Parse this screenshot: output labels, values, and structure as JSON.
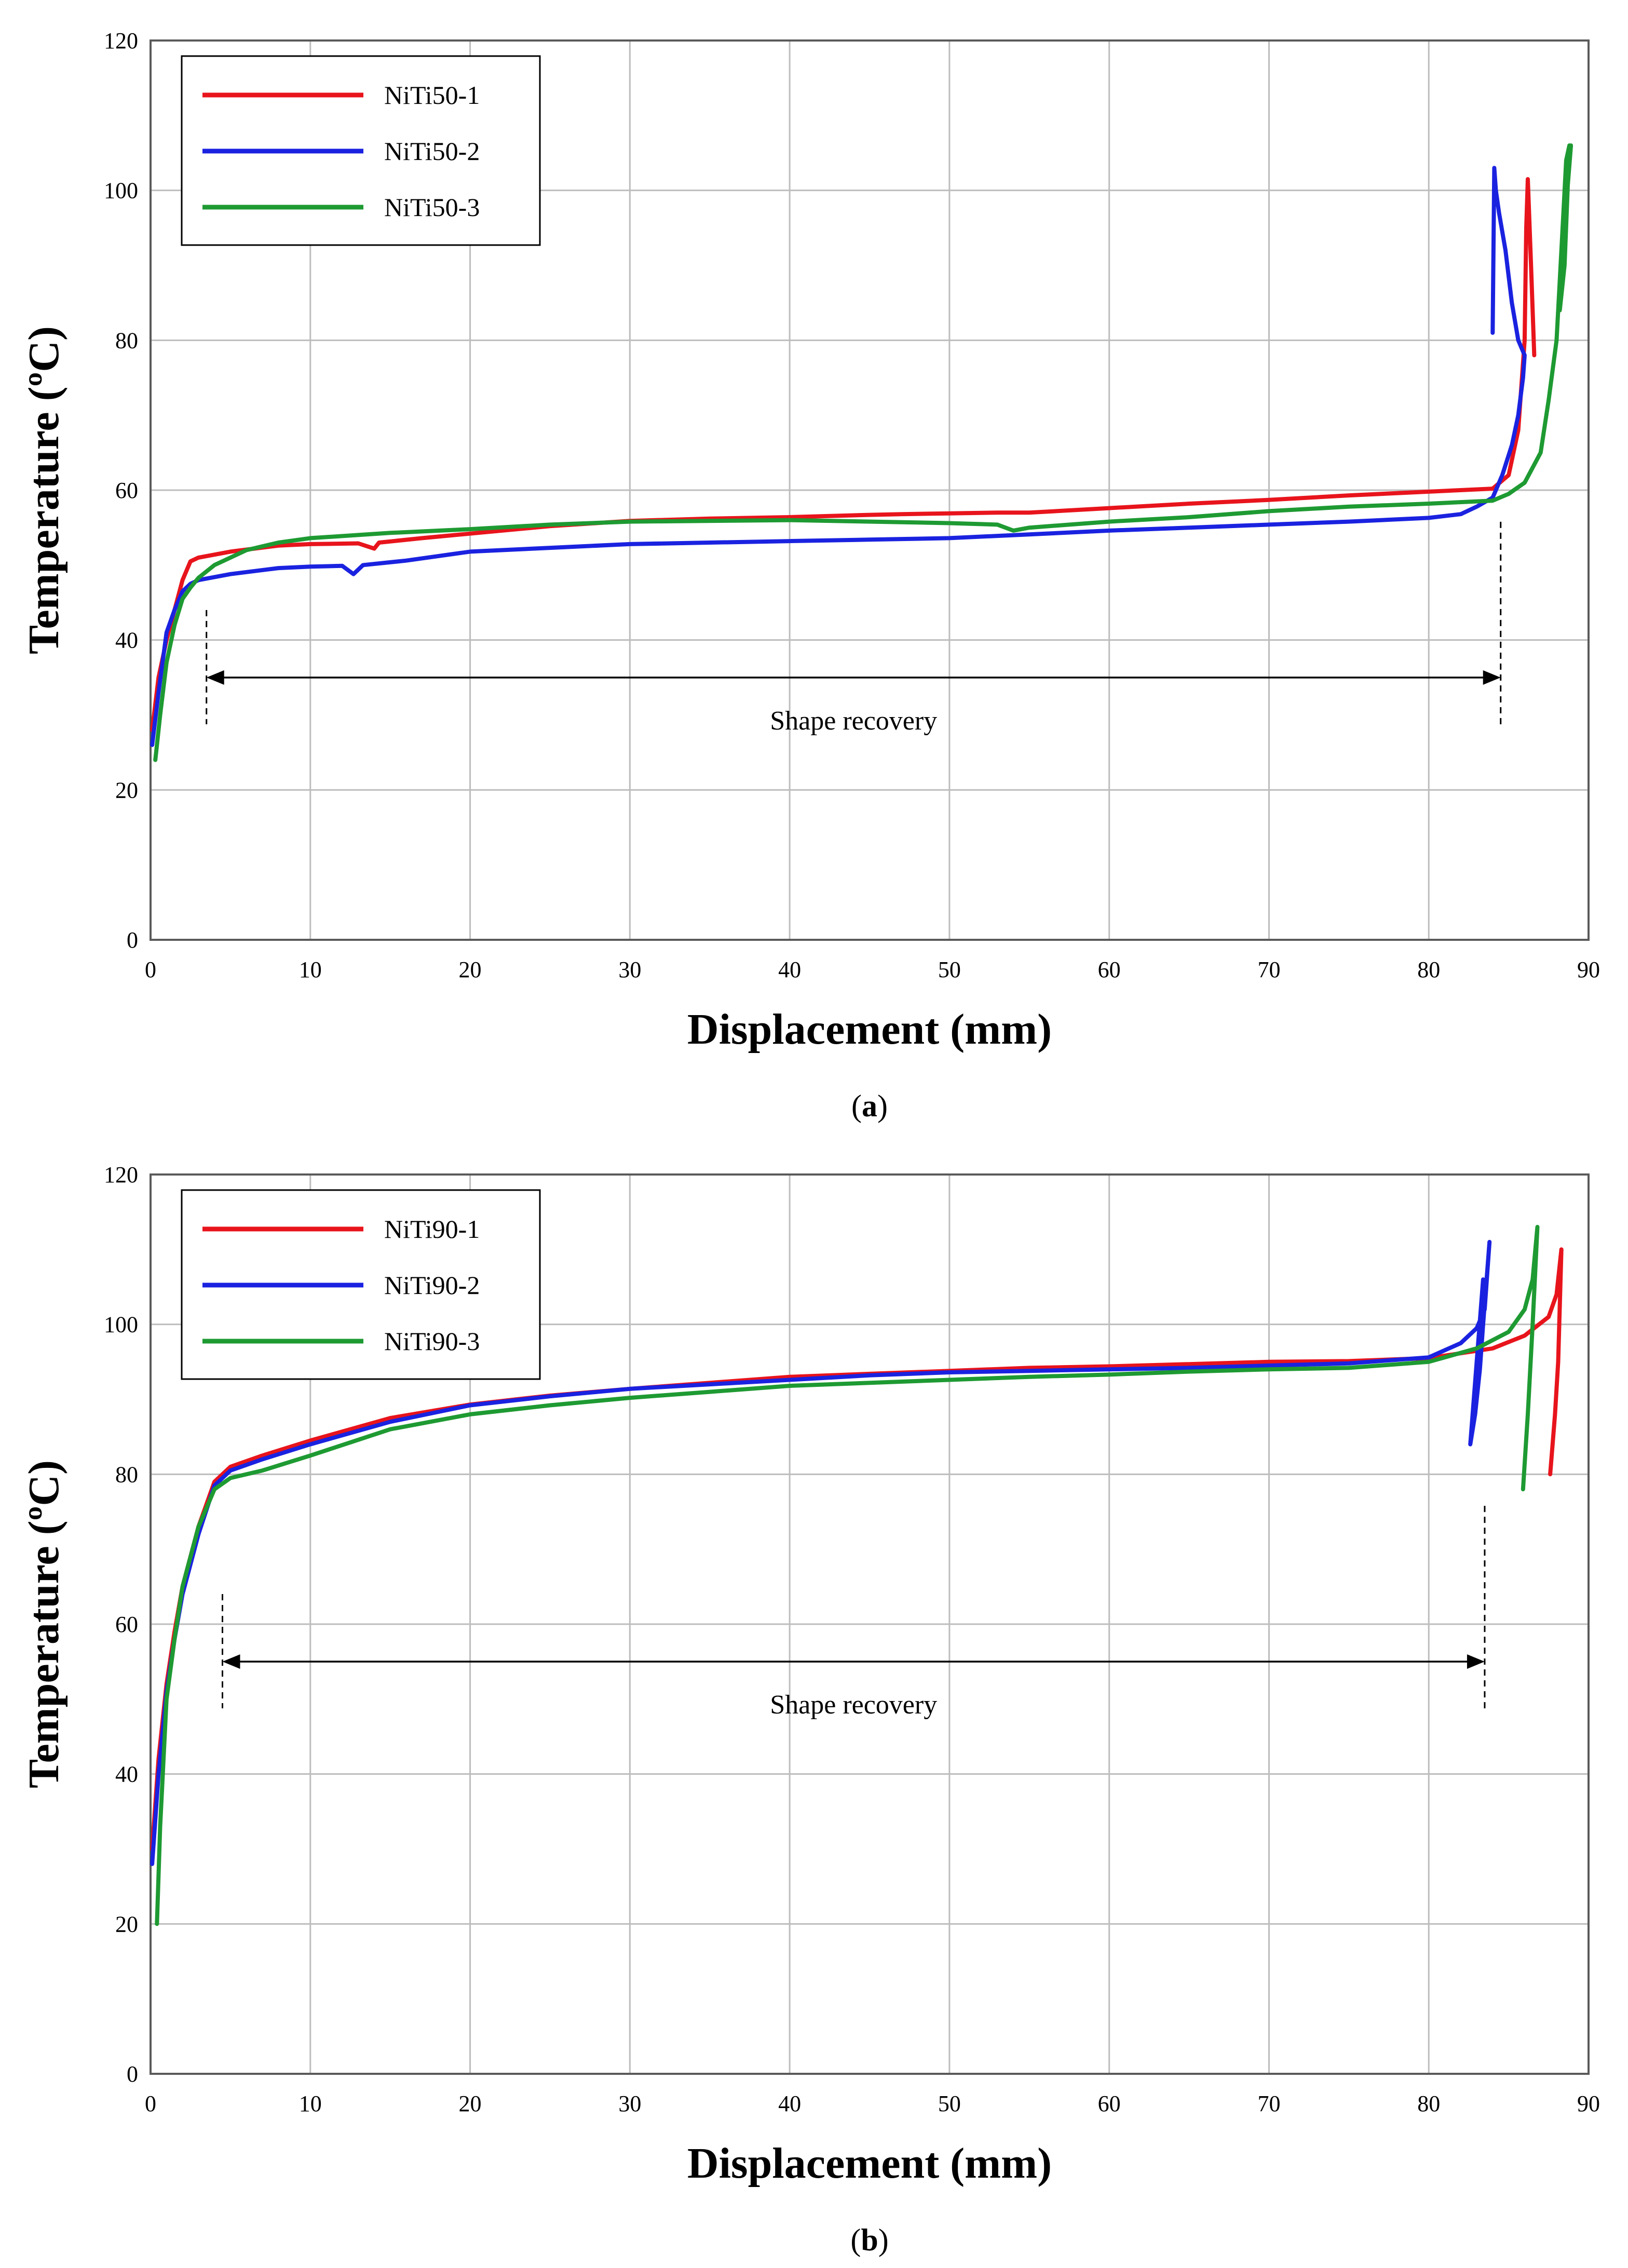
{
  "chart_data": [
    {
      "type": "line",
      "panel_label": "a",
      "xlabel": "Displacement (mm)",
      "ylabel": "Temperature (ºC)",
      "xlim": [
        0,
        90
      ],
      "ylim": [
        0,
        120
      ],
      "xticks": [
        0,
        10,
        20,
        30,
        40,
        50,
        60,
        70,
        80,
        90
      ],
      "yticks": [
        0,
        20,
        40,
        60,
        80,
        100,
        120
      ],
      "grid": true,
      "legend_position": "top-left",
      "annotation": {
        "text": "Shape recovery",
        "x_start": 3.5,
        "x_end": 84.5,
        "y": 35
      },
      "series": [
        {
          "name": "NiTi50-1",
          "color": "#e8141c",
          "x": [
            0.1,
            0.5,
            1,
            1.5,
            2,
            2.5,
            3,
            5,
            8,
            10,
            13,
            14,
            14.3,
            17,
            20,
            25,
            30,
            35,
            40,
            45,
            47,
            50,
            53,
            55,
            60,
            65,
            70,
            75,
            80,
            84,
            85,
            85.6,
            86,
            86.1,
            86.2,
            86.4,
            86.6
          ],
          "y": [
            28,
            35,
            40,
            44,
            48,
            50.5,
            51,
            51.8,
            52.6,
            52.8,
            52.9,
            52.2,
            53,
            53.6,
            54.2,
            55.2,
            55.9,
            56.2,
            56.4,
            56.7,
            56.8,
            56.9,
            57,
            57,
            57.6,
            58.2,
            58.7,
            59.3,
            59.8,
            60.2,
            62,
            68,
            80,
            95,
            101.5,
            90,
            78
          ]
        },
        {
          "name": "NiTi50-2",
          "color": "#1a22e0",
          "x": [
            0.1,
            0.5,
            1,
            1.5,
            2,
            2.5,
            3,
            5,
            8,
            10,
            12,
            12.7,
            13.3,
            16,
            20,
            25,
            30,
            40,
            45,
            50,
            55,
            60,
            65,
            70,
            75,
            80,
            82,
            83,
            84,
            84.6,
            85.2,
            85.6,
            85.9,
            86,
            85.6,
            85.2,
            84.8,
            84.4,
            84.2,
            84.1,
            84.0
          ],
          "y": [
            26,
            33,
            41,
            44,
            46.5,
            47.5,
            48,
            48.8,
            49.6,
            49.8,
            49.9,
            48.8,
            50,
            50.6,
            51.8,
            52.3,
            52.8,
            53.2,
            53.4,
            53.6,
            54.1,
            54.6,
            55,
            55.4,
            55.8,
            56.3,
            56.8,
            57.8,
            59,
            62,
            66,
            70,
            75,
            78,
            80,
            85,
            92,
            97,
            100,
            103,
            81
          ]
        },
        {
          "name": "NiTi50-3",
          "color": "#1e9a32",
          "x": [
            0.3,
            0.6,
            1,
            1.5,
            2,
            2.5,
            3,
            4,
            6,
            8,
            10,
            15,
            20,
            25,
            30,
            40,
            50,
            53,
            54,
            55,
            60,
            65,
            70,
            75,
            80,
            84,
            85,
            86,
            87,
            87.5,
            88,
            88.2,
            88.4,
            88.6,
            88.8,
            88.5,
            88.2,
            88.6,
            88.9
          ],
          "y": [
            24,
            30,
            37,
            42,
            45.5,
            47,
            48.3,
            50,
            52,
            53,
            53.6,
            54.3,
            54.8,
            55.4,
            55.8,
            56,
            55.6,
            55.4,
            54.6,
            55,
            55.8,
            56.4,
            57.2,
            57.8,
            58.2,
            58.6,
            59.5,
            61,
            65,
            72,
            80,
            88,
            96,
            104,
            106,
            90,
            84,
            98,
            106
          ]
        }
      ]
    },
    {
      "type": "line",
      "panel_label": "b",
      "xlabel": "Displacement (mm)",
      "ylabel": "Temperature (ºC)",
      "xlim": [
        0,
        90
      ],
      "ylim": [
        0,
        120
      ],
      "xticks": [
        0,
        10,
        20,
        30,
        40,
        50,
        60,
        70,
        80,
        90
      ],
      "yticks": [
        0,
        20,
        40,
        60,
        80,
        100,
        120
      ],
      "grid": true,
      "legend_position": "top-left",
      "annotation": {
        "text": "Shape recovery",
        "x_start": 4.5,
        "x_end": 83.5,
        "y": 55
      },
      "series": [
        {
          "name": "NiTi90-1",
          "color": "#e8141c",
          "x": [
            0.1,
            0.5,
            1,
            1.5,
            2,
            3,
            4,
            5,
            7,
            10,
            15,
            20,
            25,
            30,
            35,
            40,
            45,
            50,
            55,
            60,
            65,
            70,
            75,
            80,
            84,
            86,
            87.5,
            88,
            88.3,
            88.1,
            87.9,
            87.6
          ],
          "y": [
            30,
            42,
            52,
            59,
            65,
            73,
            79,
            81,
            82.5,
            84.5,
            87.5,
            89.3,
            90.5,
            91.4,
            92.2,
            93,
            93.4,
            93.8,
            94.2,
            94.4,
            94.7,
            95,
            95.1,
            95.5,
            96.8,
            98.5,
            101,
            104,
            110,
            95,
            88,
            80
          ]
        },
        {
          "name": "NiTi90-2",
          "color": "#1a22e0",
          "x": [
            0.1,
            0.5,
            1,
            1.5,
            2,
            3,
            4,
            5,
            7,
            10,
            15,
            20,
            25,
            30,
            35,
            40,
            45,
            50,
            55,
            60,
            65,
            70,
            75,
            80,
            82,
            83,
            83.5,
            83.8,
            83.4,
            83.2,
            82.9,
            82.6,
            83.4,
            83.6
          ],
          "y": [
            28,
            40,
            51,
            58,
            64,
            72,
            78.5,
            80.5,
            82,
            84,
            87,
            89.2,
            90.4,
            91.4,
            92,
            92.6,
            93.2,
            93.6,
            93.8,
            94,
            94.2,
            94.5,
            94.8,
            95.6,
            97.5,
            99.5,
            102,
            111,
            100,
            94,
            88,
            84,
            106,
            105.5
          ]
        },
        {
          "name": "NiTi90-3",
          "color": "#1e9a32",
          "x": [
            0.4,
            0.6,
            1,
            1.5,
            2,
            3,
            4,
            5,
            7,
            10,
            15,
            20,
            25,
            30,
            35,
            40,
            45,
            50,
            55,
            60,
            65,
            70,
            75,
            80,
            83,
            85,
            86,
            86.5,
            86.8,
            86.5,
            86.2,
            85.9
          ],
          "y": [
            20,
            33,
            50,
            58,
            65,
            73,
            78,
            79.5,
            80.5,
            82.5,
            86,
            88,
            89.2,
            90.2,
            91,
            91.8,
            92.2,
            92.6,
            93,
            93.3,
            93.7,
            94,
            94.2,
            95,
            96.8,
            99,
            102,
            106,
            113,
            100,
            88,
            78
          ]
        }
      ]
    }
  ]
}
